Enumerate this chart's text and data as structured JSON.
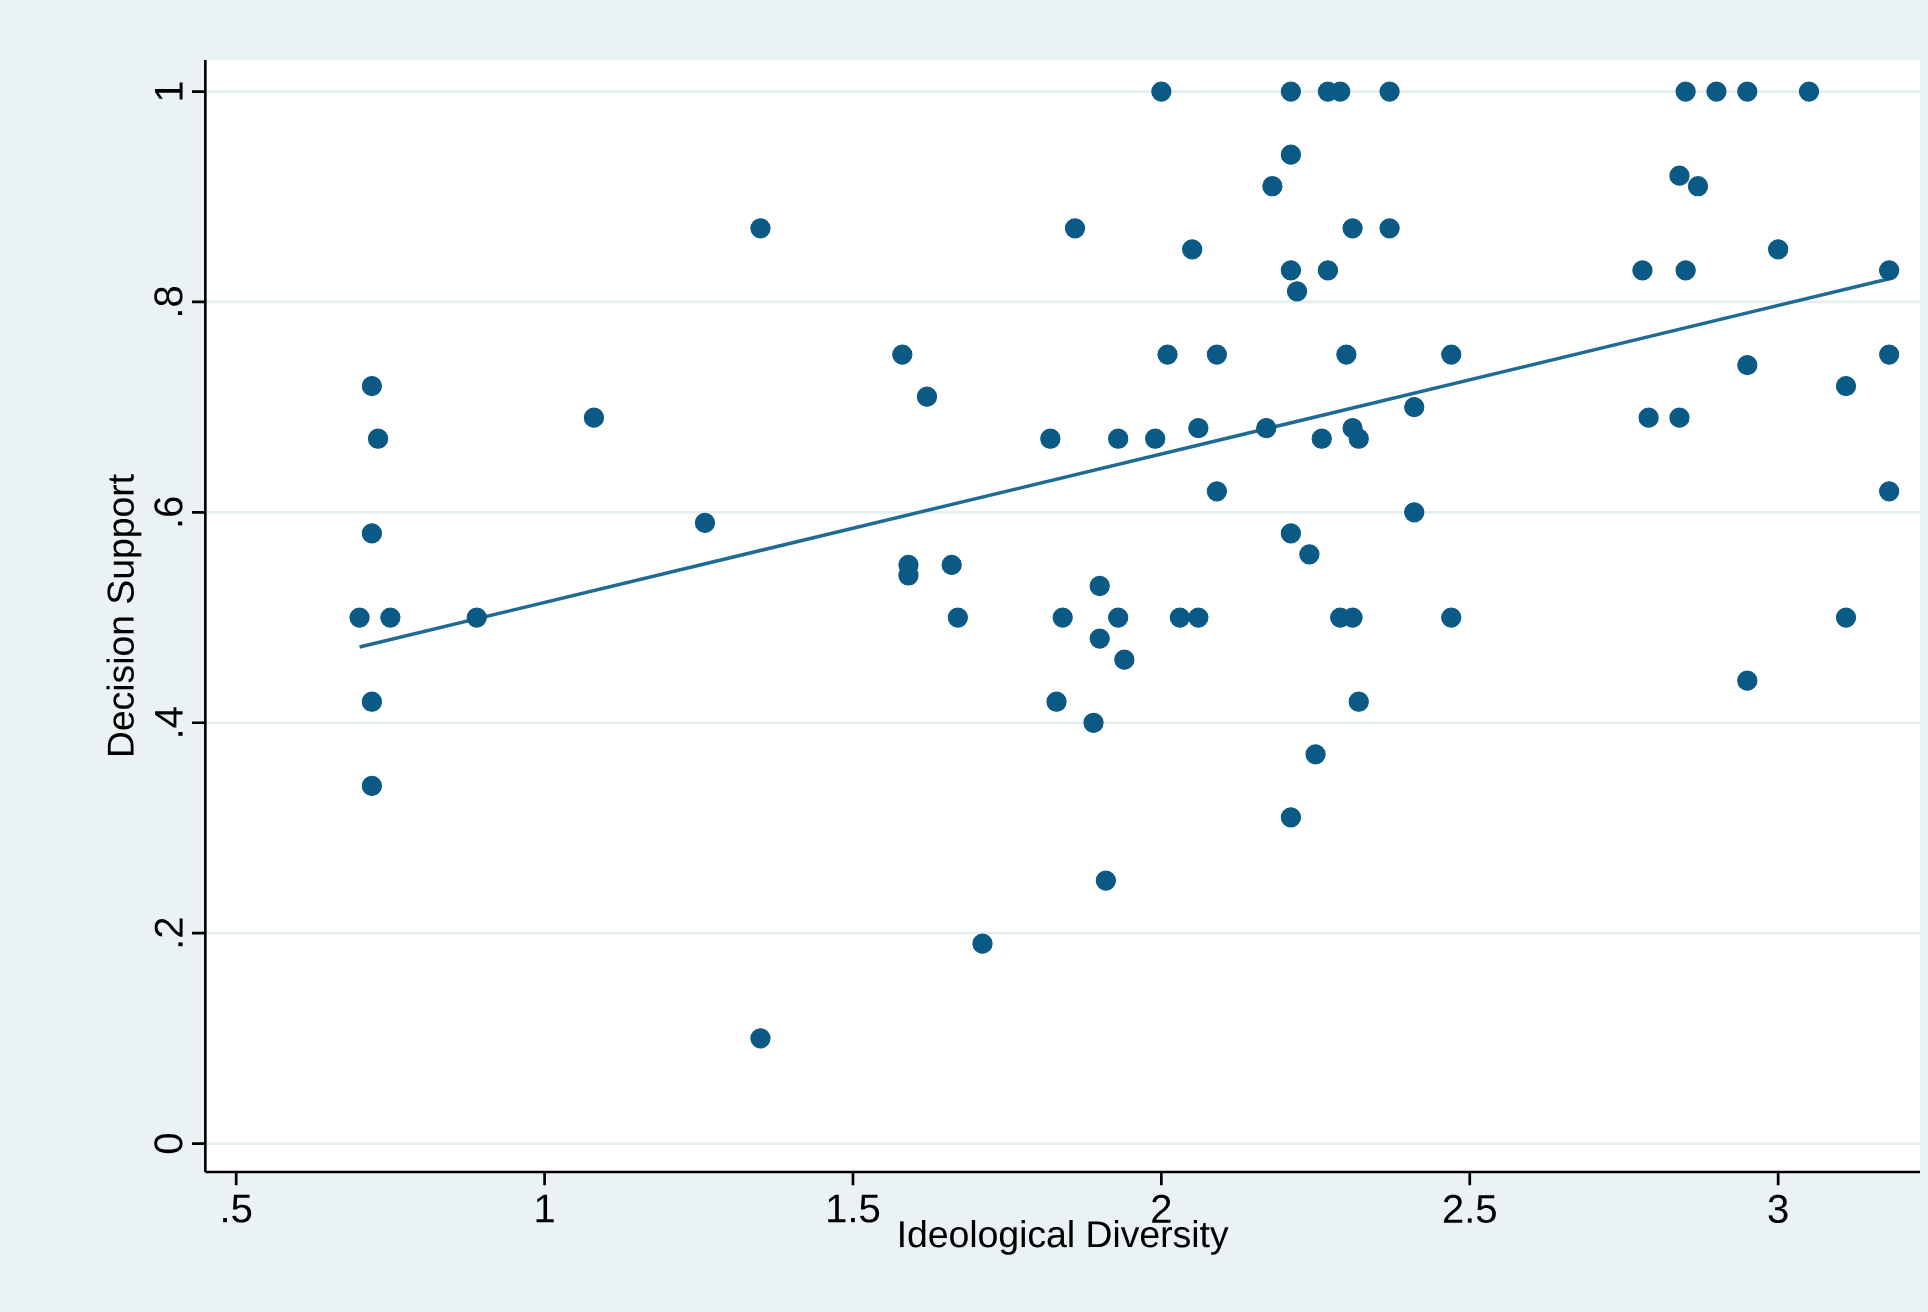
{
  "chart_data": {
    "type": "scatter",
    "xlabel": "Ideological Diversity",
    "ylabel": "Decision Support",
    "xlim": [
      0.45,
      3.23
    ],
    "ylim": [
      -0.027,
      1.03
    ],
    "xticks": [
      {
        "value": 0.5,
        "label": ".5"
      },
      1,
      1.5,
      2,
      2.5,
      3
    ],
    "yticks": [
      0,
      {
        "value": 0.2,
        "label": ".2"
      },
      {
        "value": 0.4,
        "label": ".4"
      },
      {
        "value": 0.6,
        "label": ".6"
      },
      {
        "value": 0.8,
        "label": ".8"
      },
      1
    ],
    "grid": "y",
    "series": [
      {
        "marker": "circle",
        "color": "#0b5a86",
        "x": [
          0.7,
          0.72,
          0.73,
          0.72,
          0.75,
          0.72,
          0.72,
          0.89,
          1.08,
          1.26,
          1.35,
          1.35,
          1.58,
          1.59,
          1.59,
          1.62,
          1.66,
          1.67,
          1.71,
          1.82,
          1.86,
          1.83,
          1.84,
          1.9,
          1.9,
          1.89,
          1.91,
          1.93,
          1.93,
          1.94,
          2.0,
          1.99,
          2.01,
          2.03,
          2.06,
          2.05,
          2.06,
          2.09,
          2.09,
          2.17,
          2.18,
          2.21,
          2.21,
          2.21,
          2.22,
          2.21,
          2.24,
          2.25,
          2.21,
          2.26,
          2.27,
          2.27,
          2.29,
          2.31,
          2.3,
          2.31,
          2.32,
          2.29,
          2.31,
          2.32,
          2.37,
          2.37,
          2.41,
          2.41,
          2.47,
          2.47,
          2.78,
          2.79,
          2.84,
          2.84,
          2.85,
          2.85,
          2.87,
          2.9,
          2.95,
          2.95,
          2.95,
          3.0,
          3.05,
          3.11,
          3.11,
          3.18,
          3.18,
          3.18
        ],
        "values": [
          0.5,
          0.72,
          0.67,
          0.58,
          0.5,
          0.42,
          0.34,
          0.5,
          0.69,
          0.59,
          0.87,
          0.1,
          0.75,
          0.55,
          0.54,
          0.71,
          0.55,
          0.5,
          0.19,
          0.67,
          0.87,
          0.42,
          0.5,
          0.53,
          0.48,
          0.4,
          0.25,
          0.5,
          0.67,
          0.46,
          1.0,
          0.67,
          0.75,
          0.5,
          0.5,
          0.85,
          0.68,
          0.75,
          0.62,
          0.68,
          0.91,
          1.0,
          0.94,
          0.83,
          0.81,
          0.58,
          0.56,
          0.37,
          0.31,
          0.67,
          1.0,
          0.83,
          1.0,
          0.87,
          0.75,
          0.68,
          0.67,
          0.5,
          0.5,
          0.42,
          1.0,
          0.87,
          0.7,
          0.6,
          0.75,
          0.5,
          0.83,
          0.69,
          0.69,
          0.92,
          1.0,
          0.83,
          0.91,
          1.0,
          1.0,
          0.74,
          0.44,
          0.85,
          1.0,
          0.72,
          0.5,
          0.83,
          0.75,
          0.62
        ]
      },
      {
        "type": "line",
        "marker": "none",
        "color": "#1f6b93",
        "x": [
          0.7,
          3.18
        ],
        "values": [
          0.472,
          0.822
        ]
      }
    ]
  }
}
